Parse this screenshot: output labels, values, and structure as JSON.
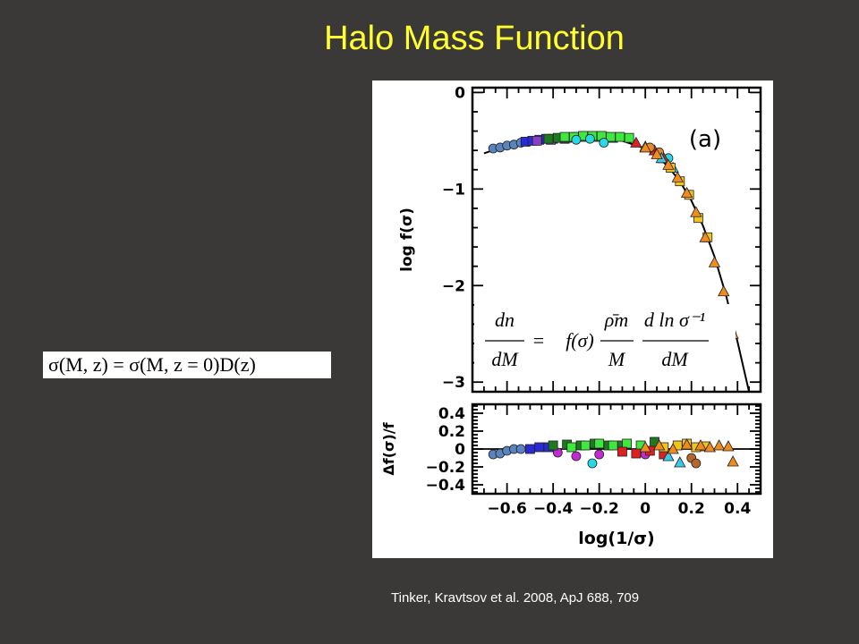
{
  "slide": {
    "title": "Halo Mass Function",
    "equation_sigma": "σ(M, z)  =  σ(M, z  =  0)D(z)",
    "citation": "Tinker, Kravtsov et al. 2008, ApJ  688, 709"
  },
  "colors": {
    "background": "#3b3838",
    "title": "#ffff2e",
    "curve": "#000000"
  },
  "chart_data": [
    {
      "type": "scatter",
      "panel_label": "(a)",
      "xlabel": "",
      "ylabel": "log f(σ)",
      "xlim": [
        -0.75,
        0.5
      ],
      "ylim": [
        -3.1,
        0.05
      ],
      "yticks": [
        "0",
        "−1",
        "−2",
        "−3"
      ],
      "yticks_values": [
        0,
        -1,
        -2,
        -3
      ],
      "equation_inset": {
        "lhs_num": "dn",
        "lhs_den": "dM",
        "eq": "=",
        "f": "f(σ)",
        "rho_num": "ρ̄m",
        "rho_den": "M",
        "dln_num": "d ln σ⁻¹",
        "dln_den": "dM"
      },
      "fit_curve": {
        "x": [
          -0.7,
          -0.6,
          -0.5,
          -0.4,
          -0.3,
          -0.2,
          -0.1,
          0.0,
          0.05,
          0.1,
          0.15,
          0.2,
          0.25,
          0.3,
          0.35,
          0.4,
          0.45
        ],
        "y": [
          -0.63,
          -0.55,
          -0.51,
          -0.48,
          -0.47,
          -0.47,
          -0.5,
          -0.58,
          -0.66,
          -0.77,
          -0.92,
          -1.12,
          -1.38,
          -1.7,
          -2.1,
          -2.58,
          -3.1
        ]
      },
      "series": [
        {
          "marker": "circle",
          "color": "#5a84bd",
          "x": [
            -0.66,
            -0.63,
            -0.6,
            -0.57,
            -0.54,
            -0.51
          ],
          "y": [
            -0.58,
            -0.57,
            -0.55,
            -0.54,
            -0.52,
            -0.51
          ]
        },
        {
          "marker": "square",
          "color": "#2b2bd6",
          "x": [
            -0.52,
            -0.49,
            -0.46,
            -0.43,
            -0.4
          ],
          "y": [
            -0.51,
            -0.5,
            -0.49,
            -0.48,
            -0.48
          ]
        },
        {
          "marker": "square",
          "color": "#8a3fc8",
          "x": [
            -0.47,
            -0.41,
            -0.35
          ],
          "y": [
            -0.5,
            -0.49,
            -0.48
          ]
        },
        {
          "marker": "square",
          "color": "#1f7a1f",
          "x": [
            -0.42,
            -0.38,
            -0.34,
            -0.3,
            -0.26,
            -0.22,
            -0.18,
            -0.14
          ],
          "y": [
            -0.48,
            -0.47,
            -0.47,
            -0.46,
            -0.46,
            -0.46,
            -0.46,
            -0.47
          ]
        },
        {
          "marker": "square",
          "color": "#3ee83e",
          "x": [
            -0.35,
            -0.31,
            -0.27,
            -0.23,
            -0.19,
            -0.15,
            -0.11,
            -0.07
          ],
          "y": [
            -0.46,
            -0.46,
            -0.45,
            -0.45,
            -0.45,
            -0.46,
            -0.46,
            -0.47
          ]
        },
        {
          "marker": "circle",
          "color": "#25d9e6",
          "x": [
            -0.3,
            -0.24,
            -0.18,
            0.1
          ],
          "y": [
            -0.49,
            -0.48,
            -0.52,
            -0.68
          ]
        },
        {
          "marker": "triangle",
          "color": "#e02020",
          "x": [
            -0.04,
            0.0,
            0.04,
            0.08
          ],
          "y": [
            -0.52,
            -0.56,
            -0.6,
            -0.68
          ]
        },
        {
          "marker": "circle",
          "color": "#e68a2e",
          "x": [
            0.02,
            0.06
          ],
          "y": [
            -0.57,
            -0.62
          ]
        },
        {
          "marker": "triangle",
          "color": "#3cc8e8",
          "x": [
            0.07,
            0.12
          ],
          "y": [
            -0.68,
            -0.78
          ]
        },
        {
          "marker": "square",
          "color": "#f0c419",
          "x": [
            0.11,
            0.15,
            0.19,
            0.23,
            0.27
          ],
          "y": [
            -0.78,
            -0.92,
            -1.06,
            -1.3,
            -1.5
          ]
        },
        {
          "marker": "triangle",
          "color": "#f08c1e",
          "x": [
            0.0,
            0.05,
            0.1,
            0.14,
            0.18,
            0.22,
            0.26,
            0.3,
            0.34,
            0.38
          ],
          "y": [
            -0.57,
            -0.64,
            -0.75,
            -0.88,
            -1.04,
            -1.24,
            -1.5,
            -1.76,
            -2.06,
            -2.5
          ]
        }
      ]
    },
    {
      "type": "scatter",
      "xlabel": "log(1/σ)",
      "ylabel": "Δf(σ)/f",
      "xlim": [
        -0.75,
        0.5
      ],
      "ylim": [
        -0.5,
        0.5
      ],
      "xticks": [
        "−0.6",
        "−0.4",
        "−0.2",
        "0",
        "0.2",
        "0.4"
      ],
      "xticks_values": [
        -0.6,
        -0.4,
        -0.2,
        0,
        0.2,
        0.4
      ],
      "yticks": [
        "0.4",
        "0.2",
        "0",
        "−0.2",
        "−0.4"
      ],
      "yticks_values": [
        0.4,
        0.2,
        0,
        -0.2,
        -0.4
      ],
      "series": [
        {
          "marker": "circle",
          "color": "#5a84bd",
          "x": [
            -0.66,
            -0.63,
            -0.6,
            -0.57,
            -0.54
          ],
          "y": [
            -0.06,
            -0.05,
            -0.02,
            0.0,
            0.0
          ]
        },
        {
          "marker": "square",
          "color": "#2b2bd6",
          "x": [
            -0.5,
            -0.46,
            -0.42
          ],
          "y": [
            0.0,
            0.02,
            0.02
          ]
        },
        {
          "marker": "circle",
          "color": "#c32ad6",
          "x": [
            -0.38,
            -0.3,
            -0.2,
            0.0
          ],
          "y": [
            -0.04,
            -0.08,
            -0.06,
            -0.06
          ]
        },
        {
          "marker": "square",
          "color": "#1f7a1f",
          "x": [
            -0.4,
            -0.34,
            -0.28,
            -0.22,
            -0.16,
            -0.1,
            0.04
          ],
          "y": [
            0.04,
            0.05,
            0.04,
            0.06,
            0.04,
            0.04,
            0.08
          ]
        },
        {
          "marker": "square",
          "color": "#3ee83e",
          "x": [
            -0.32,
            -0.26,
            -0.2,
            -0.14,
            -0.08,
            -0.02
          ],
          "y": [
            0.02,
            0.04,
            0.06,
            0.04,
            0.06,
            0.04
          ]
        },
        {
          "marker": "circle",
          "color": "#25d9e6",
          "x": [
            -0.23
          ],
          "y": [
            -0.16
          ]
        },
        {
          "marker": "square",
          "color": "#e02020",
          "x": [
            -0.1,
            -0.04,
            0.02,
            0.08
          ],
          "y": [
            -0.03,
            -0.05,
            -0.02,
            -0.06
          ]
        },
        {
          "marker": "triangle",
          "color": "#3cc8e8",
          "x": [
            0.1,
            0.15
          ],
          "y": [
            -0.08,
            -0.15
          ]
        },
        {
          "marker": "circle",
          "color": "#b8652b",
          "x": [
            0.2,
            0.22
          ],
          "y": [
            -0.1,
            -0.16
          ]
        },
        {
          "marker": "square",
          "color": "#f0c419",
          "x": [
            0.08,
            0.14,
            0.18,
            0.22,
            0.26
          ],
          "y": [
            0.02,
            0.04,
            0.06,
            0.02,
            0.03
          ]
        },
        {
          "marker": "triangle",
          "color": "#f08c1e",
          "x": [
            0.0,
            0.06,
            0.12,
            0.18,
            0.24,
            0.28,
            0.32,
            0.36,
            0.38
          ],
          "y": [
            0.02,
            0.04,
            0.0,
            0.05,
            0.04,
            0.02,
            0.04,
            0.03,
            -0.14
          ]
        }
      ]
    }
  ]
}
